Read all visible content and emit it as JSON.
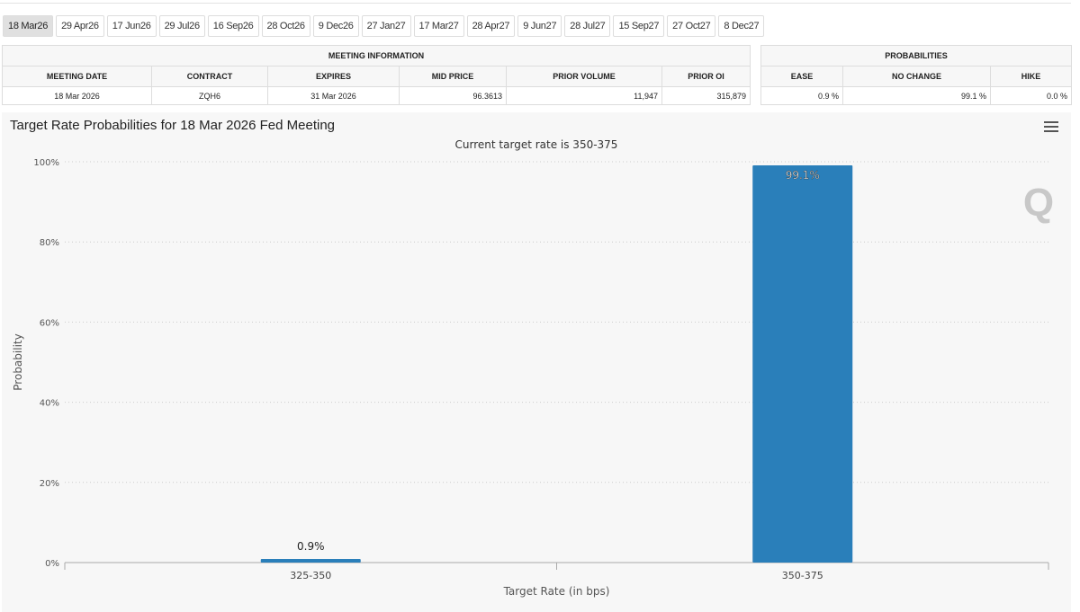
{
  "tabs": [
    "18 Mar26",
    "29 Apr26",
    "17 Jun26",
    "29 Jul26",
    "16 Sep26",
    "28 Oct26",
    "9 Dec26",
    "27 Jan27",
    "17 Mar27",
    "28 Apr27",
    "9 Jun27",
    "28 Jul27",
    "15 Sep27",
    "27 Oct27",
    "8 Dec27"
  ],
  "meeting": {
    "header": "MEETING INFORMATION",
    "cols": [
      "MEETING DATE",
      "CONTRACT",
      "EXPIRES",
      "MID PRICE",
      "PRIOR VOLUME",
      "PRIOR OI"
    ],
    "values": [
      "18 Mar 2026",
      "ZQH6",
      "31 Mar 2026",
      "96.3613",
      "11,947",
      "315,879"
    ]
  },
  "probabilities": {
    "header": "PROBABILITIES",
    "cols": [
      "EASE",
      "NO CHANGE",
      "HIKE"
    ],
    "values": [
      "0.9 %",
      "99.1 %",
      "0.0 %"
    ]
  },
  "chart_data": {
    "type": "bar",
    "title": "Target Rate Probabilities for 18 Mar 2026 Fed Meeting",
    "subtitle": "Current target rate is 350-375",
    "xlabel": "Target Rate (in bps)",
    "ylabel": "Probability",
    "categories": [
      "325-350",
      "350-375"
    ],
    "values": [
      0.9,
      99.1
    ],
    "data_labels": [
      "0.9%",
      "99.1%"
    ],
    "yticks": [
      "0%",
      "20%",
      "40%",
      "60%",
      "80%",
      "100%"
    ],
    "ylim": [
      0,
      100
    ],
    "grid": true,
    "color": "#2a7fba"
  }
}
